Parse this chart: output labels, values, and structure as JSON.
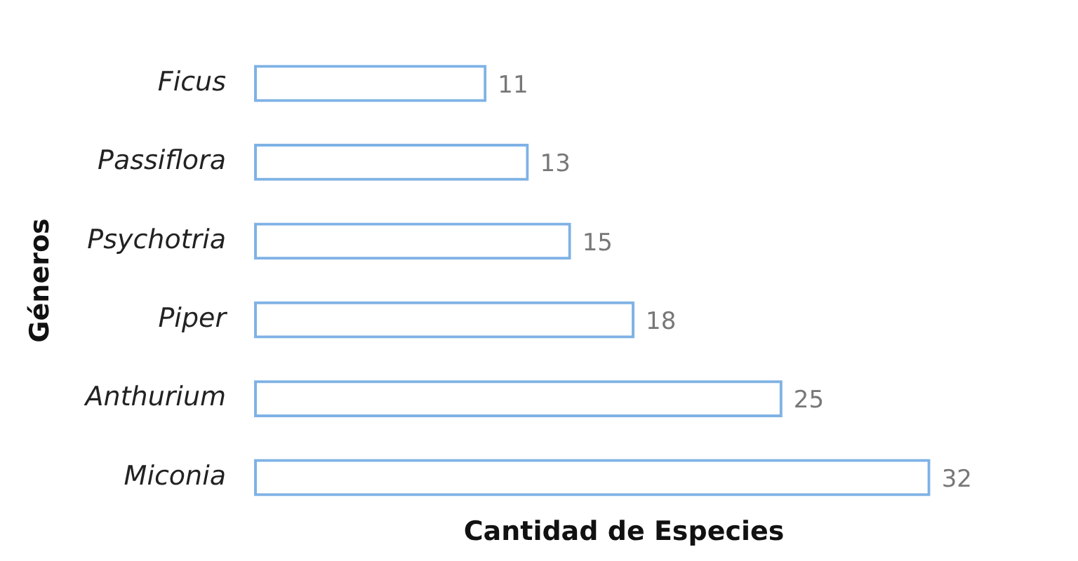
{
  "chart_data": {
    "type": "bar",
    "orientation": "horizontal",
    "xlabel": "Cantidad de Especies",
    "ylabel": "Géneros",
    "categories": [
      "Ficus",
      "Passiflora",
      "Psychotria",
      "Piper",
      "Anthurium",
      "Miconia"
    ],
    "values": [
      11,
      13,
      15,
      18,
      25,
      32
    ],
    "color": "#7fb2e5",
    "data_labels": true,
    "grid": false,
    "legend": false
  }
}
